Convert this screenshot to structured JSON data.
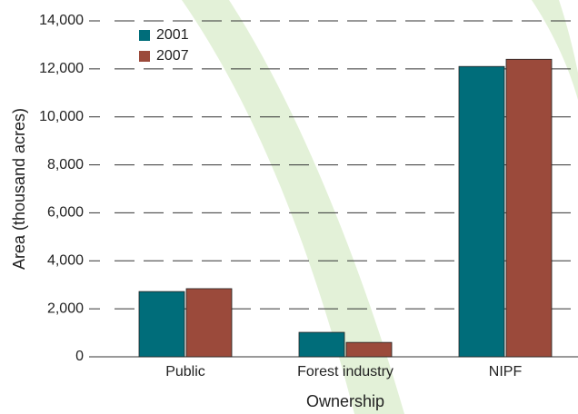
{
  "chart_data": {
    "type": "bar",
    "x_label": "Ownership",
    "y_label": "Area (thousand acres)",
    "categories": [
      "Public",
      "Forest industry",
      "NIPF"
    ],
    "series": [
      {
        "name": "2001",
        "color": "#006d7a",
        "values": [
          2720,
          1020,
          12100
        ]
      },
      {
        "name": "2007",
        "color": "#9b4a3b",
        "values": [
          2840,
          600,
          12400
        ]
      }
    ],
    "ylim": [
      0,
      14000
    ],
    "yticks": [
      0,
      {
        "value": 2000,
        "label": "2,000"
      },
      {
        "value": 4000,
        "label": "4,000"
      },
      {
        "value": 6000,
        "label": "6,000"
      },
      {
        "value": 8000,
        "label": "8,000"
      },
      {
        "value": 10000,
        "label": "10,000"
      },
      {
        "value": 12000,
        "label": "12,000"
      },
      {
        "value": 14000,
        "label": "14,000"
      }
    ],
    "grid": true,
    "legend": "upper-left"
  }
}
